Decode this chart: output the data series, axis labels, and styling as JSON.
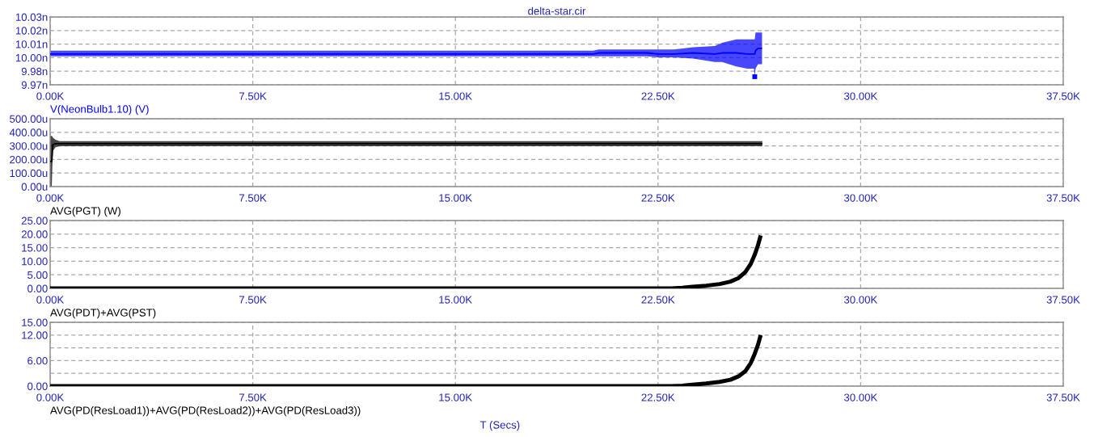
{
  "chart_data": [
    {
      "type": "line",
      "title": "delta-star.cir",
      "x": [
        0,
        16100,
        20100,
        20300,
        22100,
        22500,
        23100,
        23800,
        24600,
        24870,
        25400,
        25800,
        26050,
        26080,
        26110,
        26200,
        26350
      ],
      "series": [
        {
          "name": "V(NeonBulb1.10) (V)",
          "color": "#0000ff",
          "values": [
            10.0,
            10.0,
            10.0,
            10.001,
            10.001,
            10.0,
            10.0,
            10.001,
            10.0,
            10.001,
            10.001,
            10.0,
            10.0,
            10.0,
            10.003,
            10.005,
            10.005
          ],
          "lower": [
            9.998,
            9.998,
            9.998,
            9.998,
            9.998,
            9.997,
            9.997,
            9.996,
            9.993,
            9.993,
            9.989,
            9.987,
            9.987,
            9.98,
            9.987,
            9.991,
            9.991
          ],
          "upper": [
            10.003,
            10.003,
            10.003,
            10.004,
            10.004,
            10.004,
            10.004,
            10.006,
            10.007,
            10.01,
            10.013,
            10.013,
            10.013,
            10.013,
            10.019,
            10.019,
            10.019
          ]
        },
        {
          "type": "scatter",
          "color": "#0000ff",
          "marker": "square",
          "x": [
            26080
          ],
          "values": [
            9.98
          ]
        }
      ],
      "xlim": [
        0,
        37500
      ],
      "xticks": [
        {
          "value": 0,
          "label": "0.00K"
        },
        {
          "value": 7500,
          "label": "7.50K"
        },
        {
          "value": 15000,
          "label": "15.00K"
        },
        {
          "value": 22500,
          "label": "22.50K"
        },
        {
          "value": 30000,
          "label": "30.00K"
        },
        {
          "value": 37500,
          "label": "37.50K"
        }
      ],
      "ylim": [
        9.9728,
        10.0328
      ],
      "yticks": [
        {
          "value": 9.9728,
          "label": "9.97n"
        },
        {
          "value": 9.9848,
          "label": "9.98n"
        },
        {
          "value": 9.9968,
          "label": "10.00n"
        },
        {
          "value": 10.0088,
          "label": "10.01n"
        },
        {
          "value": 10.0208,
          "label": "10.02n"
        },
        {
          "value": 10.0328,
          "label": "10.03n"
        }
      ],
      "grid": true
    },
    {
      "type": "line",
      "x": [
        0,
        60,
        100,
        200,
        350,
        26360
      ],
      "series": [
        {
          "name": "AVG(PGT) (W)",
          "color": "#000000",
          "values": [
            185,
            185,
            310,
            316,
            316,
            316
          ],
          "lower": [
            0,
            0,
            262,
            290,
            298,
            298
          ],
          "upper": [
            370,
            375,
            362,
            345,
            335,
            335
          ]
        }
      ],
      "xlim": [
        0,
        37500
      ],
      "xticks": [
        {
          "value": 0,
          "label": "0.00K"
        },
        {
          "value": 7500,
          "label": "7.50K"
        },
        {
          "value": 15000,
          "label": "15.00K"
        },
        {
          "value": 22500,
          "label": "22.50K"
        },
        {
          "value": 30000,
          "label": "30.00K"
        },
        {
          "value": 37500,
          "label": "37.50K"
        }
      ],
      "ylim": [
        0,
        500
      ],
      "yticks": [
        {
          "value": 0,
          "label": "0.00u"
        },
        {
          "value": 100,
          "label": "100.00u"
        },
        {
          "value": 200,
          "label": "200.00u"
        },
        {
          "value": 300,
          "label": "300.00u"
        },
        {
          "value": 400,
          "label": "400.00u"
        },
        {
          "value": 500,
          "label": "500.00u"
        }
      ],
      "grid": true
    },
    {
      "type": "line",
      "x": [
        0,
        23000,
        23400,
        23690,
        24280,
        24780,
        25180,
        25480,
        25730,
        25930,
        26080,
        26200,
        26300
      ],
      "series": [
        {
          "name": "AVG(PDT)+AVG(PST)",
          "color": "#000000",
          "values": [
            0,
            0,
            0.2,
            0.5,
            1.0,
            1.6,
            2.5,
            3.8,
            6.0,
            9.0,
            12.4,
            15.9,
            19.5
          ]
        }
      ],
      "xlim": [
        0,
        37500
      ],
      "xticks": [
        {
          "value": 0,
          "label": "0.00K"
        },
        {
          "value": 7500,
          "label": "7.50K"
        },
        {
          "value": 15000,
          "label": "15.00K"
        },
        {
          "value": 22500,
          "label": "22.50K"
        },
        {
          "value": 30000,
          "label": "30.00K"
        },
        {
          "value": 37500,
          "label": "37.50K"
        }
      ],
      "ylim": [
        0,
        25
      ],
      "yticks": [
        {
          "value": 0,
          "label": "0.00"
        },
        {
          "value": 5,
          "label": "5.00"
        },
        {
          "value": 10,
          "label": "10.00"
        },
        {
          "value": 15,
          "label": "15.00"
        },
        {
          "value": 20,
          "label": "20.00"
        },
        {
          "value": 25,
          "label": "25.00"
        }
      ],
      "grid": true
    },
    {
      "type": "line",
      "xlabel": "T (Secs)",
      "x": [
        0,
        23000,
        23400,
        23690,
        24280,
        24780,
        25180,
        25480,
        25730,
        25930,
        26080,
        26200,
        26300
      ],
      "series": [
        {
          "name": "AVG(PD(ResLoad1))+AVG(PD(ResLoad2))+AVG(PD(ResLoad3))",
          "color": "#000000",
          "values": [
            0,
            0,
            0.1,
            0.3,
            0.6,
            1.0,
            1.5,
            2.3,
            3.5,
            5.4,
            7.6,
            9.7,
            12.0
          ]
        }
      ],
      "xlim": [
        0,
        37500
      ],
      "xticks": [
        {
          "value": 0,
          "label": "0.00K"
        },
        {
          "value": 7500,
          "label": "7.50K"
        },
        {
          "value": 15000,
          "label": "15.00K"
        },
        {
          "value": 22500,
          "label": "22.50K"
        },
        {
          "value": 30000,
          "label": "30.00K"
        },
        {
          "value": 37500,
          "label": "37.50K"
        }
      ],
      "ylim": [
        0,
        15
      ],
      "yticks": [
        {
          "value": 0,
          "label": "0.00"
        },
        {
          "value": 3,
          "label": null
        },
        {
          "value": 6,
          "label": "6.00"
        },
        {
          "value": 9,
          "label": null
        },
        {
          "value": 12,
          "label": "12.00"
        },
        {
          "value": 15,
          "label": "15.00"
        }
      ],
      "grid": true
    }
  ]
}
